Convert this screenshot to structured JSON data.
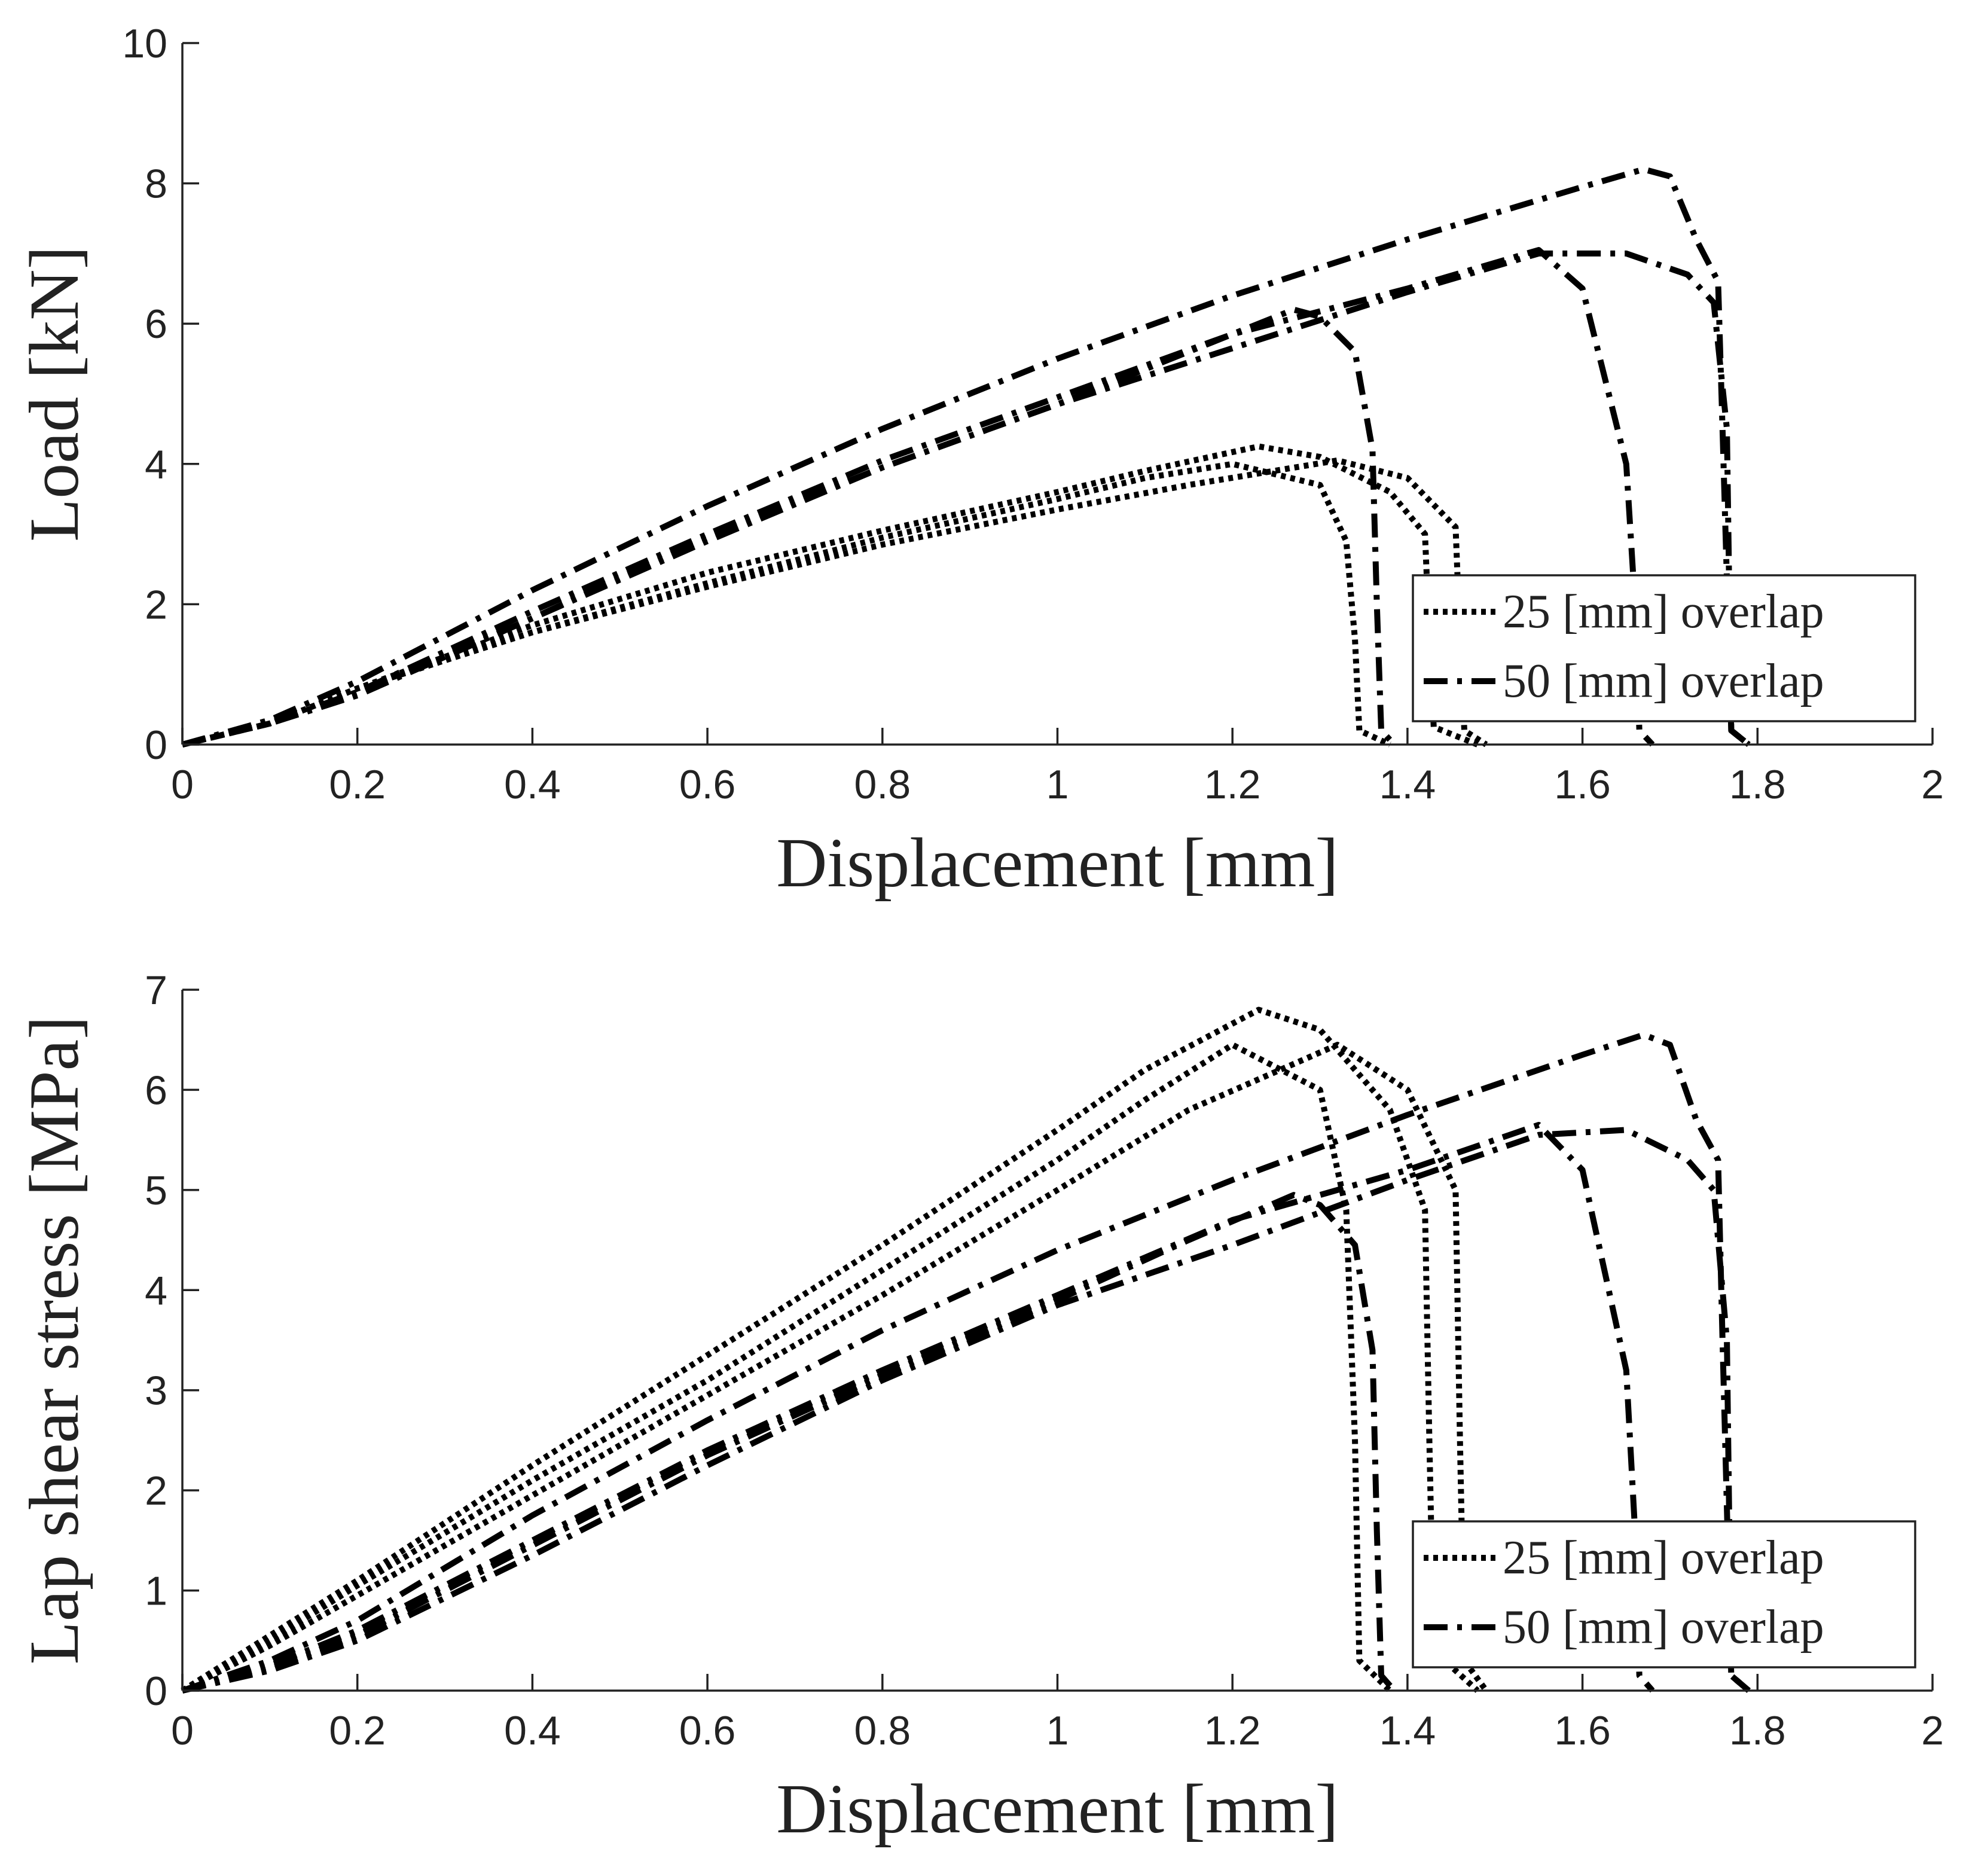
{
  "chart_data": [
    {
      "type": "line",
      "xlabel": "Displacement [mm]",
      "ylabel": "Load [kN]",
      "xlim": [
        0,
        2
      ],
      "ylim": [
        0,
        10
      ],
      "xticks": [
        "0",
        "0.2",
        "0.4",
        "0.6",
        "0.8",
        "1",
        "1.2",
        "1.4",
        "1.6",
        "1.8",
        "2"
      ],
      "yticks": [
        "0",
        "2",
        "4",
        "6",
        "8",
        "10"
      ],
      "legend": [
        {
          "label": "25 [mm] overlap",
          "style": "dotted"
        },
        {
          "label": "50 [mm] overlap",
          "style": "dashdot"
        }
      ],
      "legend_position": "bottom-right",
      "series": [
        {
          "name": "25 [mm] overlap",
          "style": "dotted",
          "x": [
            0,
            0.1,
            0.2,
            0.4,
            0.6,
            0.8,
            1.0,
            1.1,
            1.2,
            1.3,
            1.33,
            1.34,
            1.345,
            1.38
          ],
          "y": [
            0,
            0.3,
            0.8,
            1.6,
            2.3,
            2.95,
            3.5,
            3.8,
            4.0,
            3.7,
            2.9,
            1.5,
            0.2,
            0
          ]
        },
        {
          "name": "25 [mm] overlap",
          "style": "dotted",
          "x": [
            0,
            0.1,
            0.2,
            0.4,
            0.6,
            0.8,
            1.0,
            1.1,
            1.23,
            1.3,
            1.38,
            1.42,
            1.425,
            1.43,
            1.48
          ],
          "y": [
            0,
            0.3,
            0.8,
            1.7,
            2.45,
            3.05,
            3.6,
            3.9,
            4.25,
            4.1,
            3.6,
            3.0,
            1.5,
            0.25,
            0
          ]
        },
        {
          "name": "25 [mm] overlap",
          "style": "dotted",
          "x": [
            0,
            0.1,
            0.2,
            0.4,
            0.6,
            0.8,
            1.0,
            1.15,
            1.32,
            1.4,
            1.455,
            1.46,
            1.465,
            1.49
          ],
          "y": [
            0,
            0.3,
            0.8,
            1.6,
            2.25,
            2.85,
            3.35,
            3.7,
            4.05,
            3.8,
            3.1,
            1.5,
            0.2,
            0
          ]
        },
        {
          "name": "50 [mm] overlap",
          "style": "dashdot",
          "x": [
            0,
            0.1,
            0.2,
            0.4,
            0.6,
            0.8,
            1.0,
            1.2,
            1.4,
            1.6,
            1.67,
            1.7,
            1.73,
            1.755,
            1.76,
            1.77,
            1.79
          ],
          "y": [
            0,
            0.35,
            0.9,
            2.2,
            3.4,
            4.5,
            5.5,
            6.4,
            7.2,
            7.95,
            8.2,
            8.1,
            7.2,
            6.6,
            4.5,
            0.2,
            0
          ]
        },
        {
          "name": "50 [mm] overlap",
          "style": "dashdot",
          "x": [
            0,
            0.1,
            0.2,
            0.4,
            0.6,
            0.8,
            1.0,
            1.2,
            1.4,
            1.55,
            1.6,
            1.65,
            1.66,
            1.665,
            1.68
          ],
          "y": [
            0,
            0.3,
            0.75,
            1.9,
            3.0,
            4.05,
            4.95,
            5.85,
            6.5,
            7.05,
            6.5,
            4.0,
            2.0,
            0.2,
            0
          ]
        },
        {
          "name": "50 [mm] overlap",
          "style": "dashdot",
          "x": [
            0,
            0.1,
            0.2,
            0.4,
            0.6,
            0.8,
            1.0,
            1.2,
            1.4,
            1.55,
            1.65,
            1.72,
            1.75,
            1.765,
            1.77,
            1.79
          ],
          "y": [
            0,
            0.3,
            0.7,
            1.8,
            2.9,
            3.95,
            4.85,
            5.65,
            6.45,
            7.0,
            7.0,
            6.7,
            6.3,
            4.5,
            0.2,
            0
          ]
        },
        {
          "name": "50 [mm] overlap",
          "style": "dashdot",
          "x": [
            0,
            0.1,
            0.2,
            0.4,
            0.6,
            0.8,
            1.0,
            1.15,
            1.27,
            1.3,
            1.34,
            1.36,
            1.365,
            1.37,
            1.385
          ],
          "y": [
            0,
            0.3,
            0.72,
            1.8,
            2.95,
            3.95,
            4.85,
            5.6,
            6.2,
            6.1,
            5.6,
            4.2,
            2.0,
            0.2,
            0
          ]
        }
      ]
    },
    {
      "type": "line",
      "xlabel": "Displacement [mm]",
      "ylabel": "Lap shear stress [MPa]",
      "xlim": [
        0,
        2
      ],
      "ylim": [
        0,
        7
      ],
      "xticks": [
        "0",
        "0.2",
        "0.4",
        "0.6",
        "0.8",
        "1",
        "1.2",
        "1.4",
        "1.6",
        "1.8",
        "2"
      ],
      "yticks": [
        "0",
        "1",
        "2",
        "3",
        "4",
        "5",
        "6",
        "7"
      ],
      "legend": [
        {
          "label": "25 [mm] overlap",
          "style": "dotted"
        },
        {
          "label": "50 [mm] overlap",
          "style": "dashdot"
        }
      ],
      "legend_position": "bottom-right",
      "series": [
        {
          "name": "25 [mm] overlap",
          "style": "dotted",
          "x": [
            0,
            0.1,
            0.2,
            0.4,
            0.6,
            0.8,
            1.0,
            1.1,
            1.2,
            1.3,
            1.33,
            1.34,
            1.345,
            1.38
          ],
          "y": [
            0,
            0.5,
            1.05,
            2.1,
            3.1,
            4.2,
            5.3,
            5.9,
            6.45,
            6.0,
            4.8,
            2.5,
            0.3,
            0
          ]
        },
        {
          "name": "25 [mm] overlap",
          "style": "dotted",
          "x": [
            0,
            0.1,
            0.2,
            0.4,
            0.6,
            0.8,
            1.0,
            1.1,
            1.23,
            1.3,
            1.38,
            1.42,
            1.425,
            1.43,
            1.48
          ],
          "y": [
            0,
            0.55,
            1.1,
            2.25,
            3.35,
            4.45,
            5.6,
            6.2,
            6.8,
            6.6,
            5.8,
            4.8,
            2.5,
            0.4,
            0
          ]
        },
        {
          "name": "25 [mm] overlap",
          "style": "dotted",
          "x": [
            0,
            0.1,
            0.2,
            0.4,
            0.6,
            0.8,
            1.0,
            1.15,
            1.32,
            1.4,
            1.455,
            1.46,
            1.465,
            1.49
          ],
          "y": [
            0,
            0.45,
            0.95,
            1.95,
            2.95,
            3.95,
            5.0,
            5.8,
            6.45,
            6.0,
            5.0,
            2.5,
            0.3,
            0
          ]
        },
        {
          "name": "50 [mm] overlap",
          "style": "dashdot",
          "x": [
            0,
            0.1,
            0.2,
            0.4,
            0.6,
            0.8,
            1.0,
            1.2,
            1.4,
            1.6,
            1.67,
            1.7,
            1.73,
            1.755,
            1.76,
            1.77,
            1.79
          ],
          "y": [
            0,
            0.3,
            0.7,
            1.75,
            2.7,
            3.6,
            4.4,
            5.1,
            5.75,
            6.35,
            6.55,
            6.45,
            5.7,
            5.3,
            3.5,
            0.15,
            0
          ]
        },
        {
          "name": "50 [mm] overlap",
          "style": "dashdot",
          "x": [
            0,
            0.1,
            0.2,
            0.4,
            0.6,
            0.8,
            1.0,
            1.2,
            1.4,
            1.55,
            1.6,
            1.65,
            1.66,
            1.665,
            1.68
          ],
          "y": [
            0,
            0.25,
            0.6,
            1.5,
            2.4,
            3.2,
            3.95,
            4.7,
            5.2,
            5.65,
            5.2,
            3.2,
            1.6,
            0.15,
            0
          ]
        },
        {
          "name": "50 [mm] overlap",
          "style": "dashdot",
          "x": [
            0,
            0.1,
            0.2,
            0.4,
            0.6,
            0.8,
            1.0,
            1.2,
            1.4,
            1.55,
            1.65,
            1.72,
            1.75,
            1.765,
            1.77,
            1.79
          ],
          "y": [
            0,
            0.2,
            0.5,
            1.35,
            2.25,
            3.1,
            3.85,
            4.45,
            5.1,
            5.55,
            5.6,
            5.3,
            5.0,
            3.5,
            0.15,
            0
          ]
        },
        {
          "name": "50 [mm] overlap",
          "style": "dashdot",
          "x": [
            0,
            0.1,
            0.2,
            0.4,
            0.6,
            0.8,
            1.0,
            1.15,
            1.27,
            1.3,
            1.34,
            1.36,
            1.365,
            1.37,
            1.385
          ],
          "y": [
            0,
            0.22,
            0.55,
            1.45,
            2.35,
            3.15,
            3.9,
            4.5,
            4.95,
            4.85,
            4.45,
            3.4,
            1.6,
            0.15,
            0
          ]
        }
      ]
    }
  ]
}
